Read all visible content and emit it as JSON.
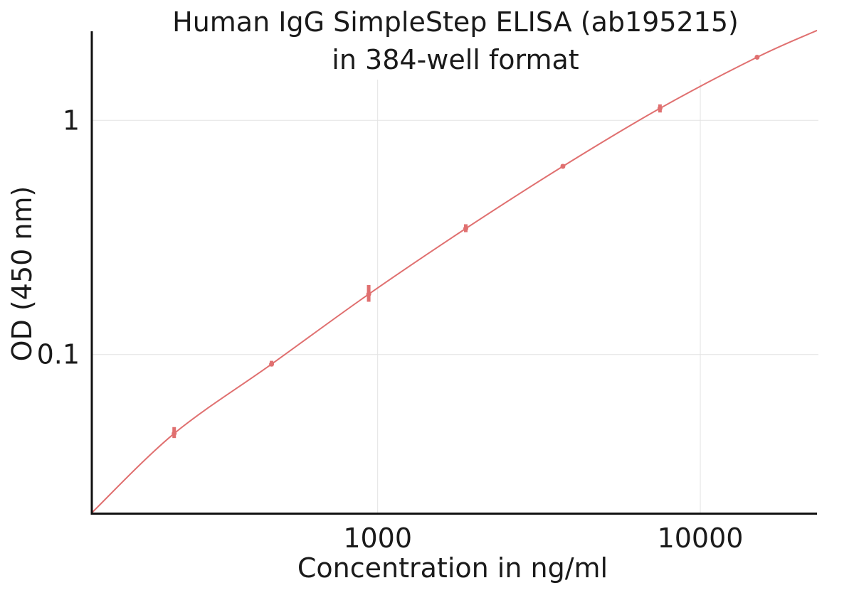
{
  "chart_data": {
    "type": "scatter",
    "title_lines": [
      "Human IgG SimpleStep ELISA (ab195215)",
      "in 384-well format"
    ],
    "xlabel": "Concentration in ng/ml",
    "ylabel": "OD (450 nm)",
    "x_scale": "log",
    "y_scale": "log",
    "xlim": [
      130,
      23000
    ],
    "ylim": [
      0.021,
      2.4
    ],
    "x_ticks": [
      {
        "value": 1000,
        "label": "1000"
      },
      {
        "value": 10000,
        "label": "10000"
      }
    ],
    "y_ticks": [
      {
        "value": 0.1,
        "label": "0.1"
      },
      {
        "value": 1,
        "label": "1"
      }
    ],
    "grid": true,
    "color": "#e07070",
    "series": [
      {
        "type": "points",
        "points": [
          {
            "x": 234,
            "y": 0.046,
            "err_low": 0.044,
            "err_high": 0.049
          },
          {
            "x": 469,
            "y": 0.091,
            "err_low": 0.089,
            "err_high": 0.094
          },
          {
            "x": 938,
            "y": 0.181,
            "err_low": 0.168,
            "err_high": 0.198
          },
          {
            "x": 1875,
            "y": 0.345,
            "err_low": 0.333,
            "err_high": 0.36
          },
          {
            "x": 3750,
            "y": 0.636,
            "err_low": 0.624,
            "err_high": 0.65
          },
          {
            "x": 7500,
            "y": 1.125,
            "err_low": 1.08,
            "err_high": 1.17
          },
          {
            "x": 15000,
            "y": 1.86,
            "err_low": 1.84,
            "err_high": 1.88
          }
        ]
      },
      {
        "type": "fit",
        "points": [
          {
            "x": 130,
            "y": 0.0211
          },
          {
            "x": 234,
            "y": 0.046
          },
          {
            "x": 469,
            "y": 0.091
          },
          {
            "x": 938,
            "y": 0.181
          },
          {
            "x": 1875,
            "y": 0.345
          },
          {
            "x": 3750,
            "y": 0.636
          },
          {
            "x": 7500,
            "y": 1.125
          },
          {
            "x": 15000,
            "y": 1.86
          },
          {
            "x": 23000,
            "y": 2.42
          }
        ]
      }
    ]
  }
}
